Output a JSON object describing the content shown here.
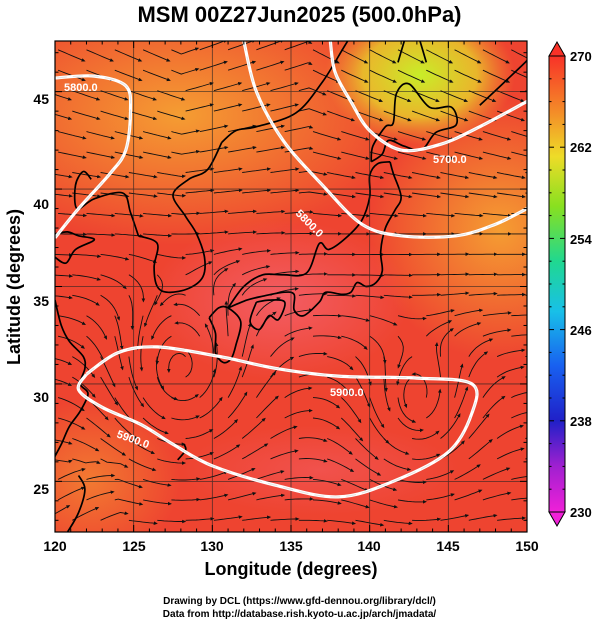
{
  "title": "MSM 00Z27Jun2025 (500.0hPa)",
  "xlabel": "Longitude (degrees)",
  "ylabel": "Latitude  (degrees)",
  "xticks": [
    "120",
    "125",
    "130",
    "135",
    "140",
    "145",
    "150"
  ],
  "yticks": [
    "25",
    "30",
    "35",
    "40",
    "45"
  ],
  "colorbar_ticks": [
    "270",
    "262",
    "254",
    "246",
    "238",
    "230"
  ],
  "contour_labels": [
    "5800.0",
    "5700.0",
    "5800.0",
    "5900.0",
    "5900.0"
  ],
  "credit_line1": "Drawing by DCL (https://www.gfd-dennou.org/library/dcl/)",
  "credit_line2": "Data from http://database.rish.kyoto-u.ac.jp/arch/jmadata/",
  "chart_data": {
    "type": "heatmap",
    "field": "temperature (K) with wind streamlines and geopotential height contours",
    "xlim": [
      120,
      150
    ],
    "ylim": [
      22.4,
      47.6
    ],
    "colorbar_range": [
      230,
      270
    ],
    "colors": {
      "warm_core": "#f05058",
      "background_red": "#ee3a2a",
      "orange": "#f2962a",
      "cool_green": "#c8ee28",
      "coast": "#000000",
      "contour": "#ffffff"
    },
    "contours": [
      {
        "level": 5800.0,
        "path": [
          [
            120,
            37.5
          ],
          [
            121.5,
            39
          ],
          [
            123.5,
            40.8
          ],
          [
            124.5,
            42
          ],
          [
            124.8,
            44
          ],
          [
            124.5,
            45.3
          ],
          [
            122.5,
            45.8
          ],
          [
            120,
            45.7
          ]
        ]
      },
      {
        "level": 5700.0,
        "path": [
          [
            137.5,
            47.6
          ],
          [
            137.8,
            46
          ],
          [
            138.8,
            44.5
          ],
          [
            140,
            43
          ],
          [
            142,
            42
          ],
          [
            144.5,
            42.3
          ],
          [
            147,
            43.2
          ],
          [
            150,
            44.5
          ]
        ]
      },
      {
        "level": 5800.0,
        "path": [
          [
            132,
            47.6
          ],
          [
            132.8,
            45
          ],
          [
            134.5,
            42.5
          ],
          [
            137,
            40.2
          ],
          [
            139.5,
            38.2
          ],
          [
            142,
            37.6
          ],
          [
            145.5,
            37.6
          ],
          [
            148,
            38.2
          ],
          [
            150,
            39
          ]
        ]
      },
      {
        "level": 5900.0,
        "path": [
          [
            122,
            30.5
          ],
          [
            124,
            31.6
          ],
          [
            126.5,
            31.9
          ],
          [
            130.5,
            31.4
          ],
          [
            134,
            30.8
          ],
          [
            138,
            30.4
          ],
          [
            143,
            30.3
          ],
          [
            146.5,
            30
          ],
          [
            146.5,
            28.5
          ],
          [
            145,
            26.5
          ],
          [
            141.5,
            25
          ],
          [
            138,
            24.2
          ],
          [
            134,
            24.8
          ],
          [
            130,
            25.8
          ],
          [
            127.5,
            26.9
          ],
          [
            125.5,
            27.9
          ],
          [
            123,
            28.8
          ],
          [
            121.5,
            29.7
          ],
          [
            122,
            30.5
          ]
        ]
      }
    ]
  }
}
